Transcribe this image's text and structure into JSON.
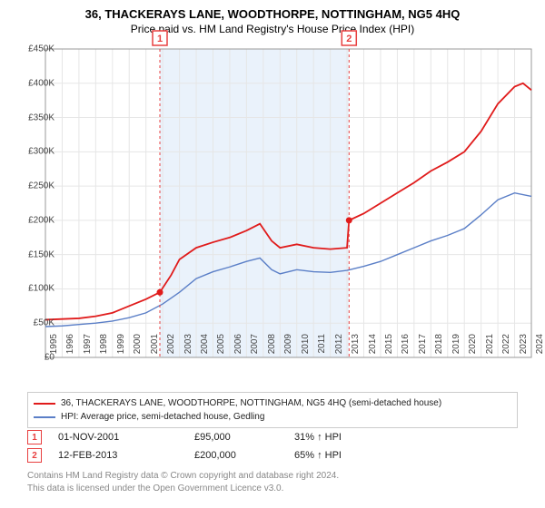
{
  "title": "36, THACKERAYS LANE, WOODTHORPE, NOTTINGHAM, NG5 4HQ",
  "subtitle": "Price paid vs. HM Land Registry's House Price Index (HPI)",
  "chart": {
    "type": "line",
    "background_color": "#ffffff",
    "grid_color": "#e6e6e6",
    "shade_color": "#eaf2fb",
    "ylim": [
      0,
      450000
    ],
    "ytick_step": 50000,
    "ytick_labels": [
      "£0",
      "£50K",
      "£100K",
      "£150K",
      "£200K",
      "£250K",
      "£300K",
      "£350K",
      "£400K",
      "£450K"
    ],
    "xlim": [
      1995,
      2024
    ],
    "xticks": [
      1995,
      1996,
      1997,
      1998,
      1999,
      2000,
      2001,
      2002,
      2003,
      2004,
      2005,
      2006,
      2007,
      2008,
      2009,
      2010,
      2011,
      2012,
      2013,
      2014,
      2015,
      2016,
      2017,
      2018,
      2019,
      2020,
      2021,
      2022,
      2023,
      2024
    ],
    "shade_ranges": [
      [
        2001.83,
        2013.12
      ]
    ],
    "series": [
      {
        "name": "property",
        "label": "36, THACKERAYS LANE, WOODTHORPE, NOTTINGHAM, NG5 4HQ (semi-detached house)",
        "color": "#e01b1b",
        "line_width": 1.8,
        "points": [
          [
            1995,
            55000
          ],
          [
            1996,
            56000
          ],
          [
            1997,
            57000
          ],
          [
            1998,
            60000
          ],
          [
            1999,
            65000
          ],
          [
            2000,
            75000
          ],
          [
            2001,
            85000
          ],
          [
            2001.83,
            95000
          ],
          [
            2002.5,
            120000
          ],
          [
            2003,
            143000
          ],
          [
            2004,
            160000
          ],
          [
            2005,
            168000
          ],
          [
            2006,
            175000
          ],
          [
            2007,
            185000
          ],
          [
            2007.8,
            195000
          ],
          [
            2008.5,
            170000
          ],
          [
            2009,
            160000
          ],
          [
            2010,
            165000
          ],
          [
            2011,
            160000
          ],
          [
            2012,
            158000
          ],
          [
            2013,
            160000
          ],
          [
            2013.12,
            200000
          ],
          [
            2014,
            210000
          ],
          [
            2015,
            225000
          ],
          [
            2016,
            240000
          ],
          [
            2017,
            255000
          ],
          [
            2018,
            272000
          ],
          [
            2019,
            285000
          ],
          [
            2020,
            300000
          ],
          [
            2021,
            330000
          ],
          [
            2022,
            370000
          ],
          [
            2023,
            395000
          ],
          [
            2023.5,
            400000
          ],
          [
            2024,
            390000
          ]
        ]
      },
      {
        "name": "hpi",
        "label": "HPI: Average price, semi-detached house, Gedling",
        "color": "#5b7fc7",
        "line_width": 1.4,
        "points": [
          [
            1995,
            45000
          ],
          [
            1996,
            46000
          ],
          [
            1997,
            48000
          ],
          [
            1998,
            50000
          ],
          [
            1999,
            53000
          ],
          [
            2000,
            58000
          ],
          [
            2001,
            65000
          ],
          [
            2002,
            78000
          ],
          [
            2003,
            95000
          ],
          [
            2004,
            115000
          ],
          [
            2005,
            125000
          ],
          [
            2006,
            132000
          ],
          [
            2007,
            140000
          ],
          [
            2007.8,
            145000
          ],
          [
            2008.5,
            128000
          ],
          [
            2009,
            122000
          ],
          [
            2010,
            128000
          ],
          [
            2011,
            125000
          ],
          [
            2012,
            124000
          ],
          [
            2013,
            127000
          ],
          [
            2014,
            133000
          ],
          [
            2015,
            140000
          ],
          [
            2016,
            150000
          ],
          [
            2017,
            160000
          ],
          [
            2018,
            170000
          ],
          [
            2019,
            178000
          ],
          [
            2020,
            188000
          ],
          [
            2021,
            208000
          ],
          [
            2022,
            230000
          ],
          [
            2023,
            240000
          ],
          [
            2024,
            235000
          ]
        ]
      }
    ],
    "event_markers": [
      {
        "badge": "1",
        "x": 2001.83,
        "y": 95000,
        "dot_color": "#e01b1b",
        "line_color": "#e84040"
      },
      {
        "badge": "2",
        "x": 2013.12,
        "y": 200000,
        "dot_color": "#e01b1b",
        "line_color": "#e84040"
      }
    ]
  },
  "legend": {
    "border_color": "#cccccc",
    "items": [
      {
        "color": "#e01b1b",
        "text": "36, THACKERAYS LANE, WOODTHORPE, NOTTINGHAM, NG5 4HQ (semi-detached house)"
      },
      {
        "color": "#5b7fc7",
        "text": "HPI: Average price, semi-detached house, Gedling"
      }
    ]
  },
  "transactions": [
    {
      "badge": "1",
      "date": "01-NOV-2001",
      "price": "£95,000",
      "delta": "31% ↑ HPI"
    },
    {
      "badge": "2",
      "date": "12-FEB-2013",
      "price": "£200,000",
      "delta": "65% ↑ HPI"
    }
  ],
  "footnote_line1": "Contains HM Land Registry data © Crown copyright and database right 2024.",
  "footnote_line2": "This data is licensed under the Open Government Licence v3.0.",
  "fonts": {
    "title": 13,
    "subtitle": 12,
    "axis": 10,
    "legend": 10,
    "table": 11,
    "footnote": 10
  }
}
